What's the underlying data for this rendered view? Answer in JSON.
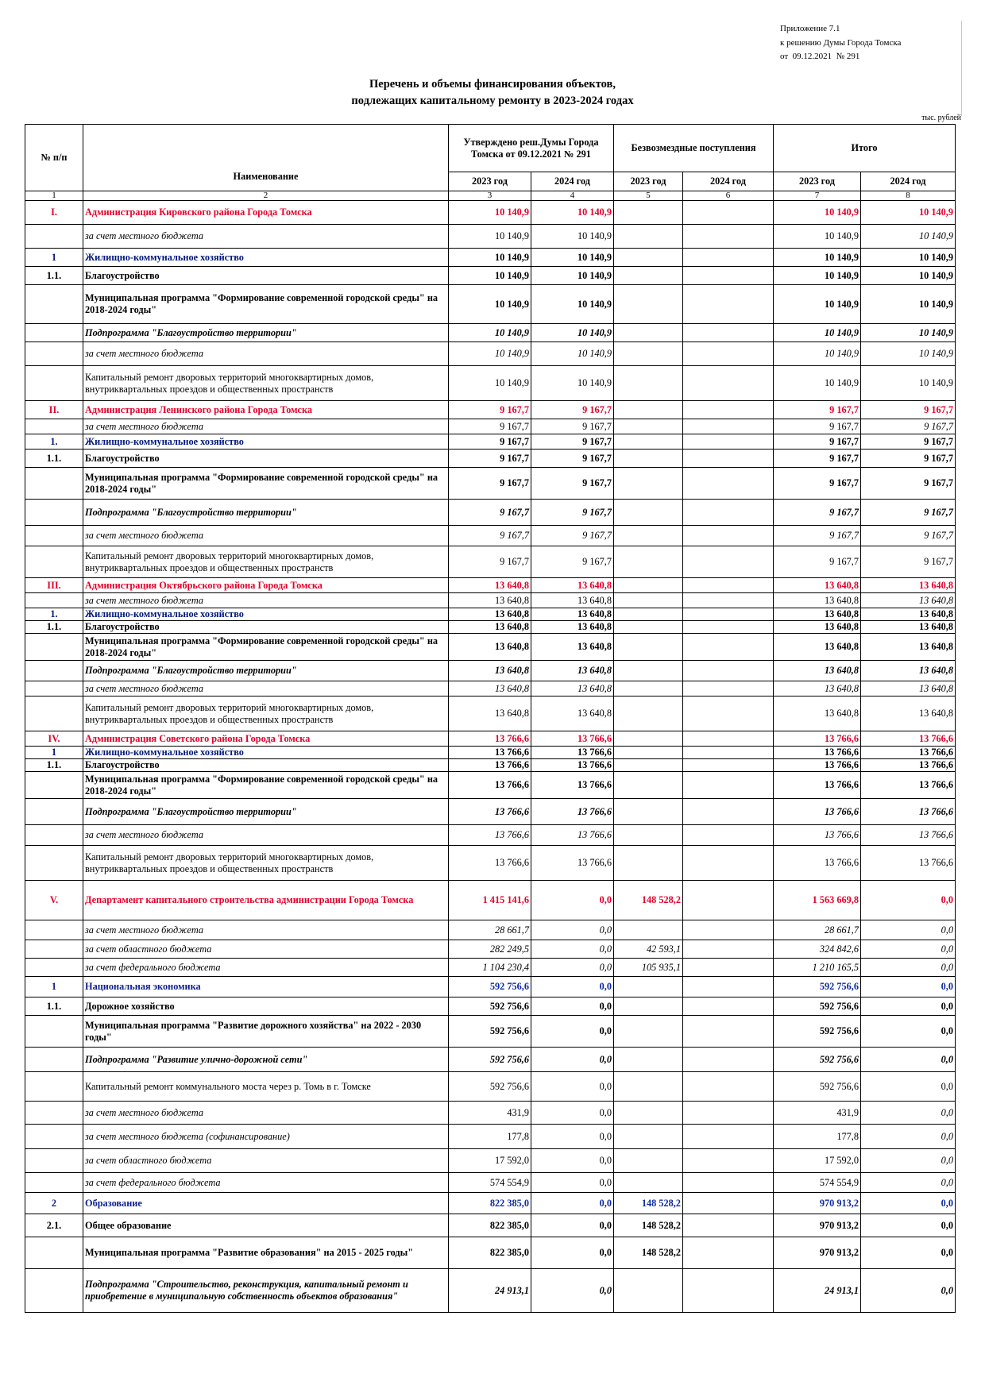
{
  "annex": {
    "line1": "Приложение 7.1",
    "line2": "к решению Думы Города Томска",
    "line3": "от  09.12.2021  № 291"
  },
  "title": {
    "line1": "Перечень и объемы финансирования объектов,",
    "line2": "подлежащих капитальному ремонту в 2023-2024 годах"
  },
  "units": "тыс. рублей",
  "header": {
    "no": "№ п/п",
    "name": "Наименование",
    "approved": "Утверждено реш.Думы Города Томска от 09.12.2021 № 291",
    "grants": "Безвозмездные поступления",
    "total": "Итого",
    "y2023": "2023 год",
    "y2024": "2024 год",
    "col_numbers": [
      "1",
      "2",
      "3",
      "4",
      "5",
      "6",
      "7",
      "8"
    ]
  },
  "rows": [
    {
      "no": "I.",
      "name": "Администрация Кировского района Города Томска",
      "v": [
        "10 140,9",
        "10 140,9",
        "",
        "",
        "10 140,9",
        "10 140,9"
      ],
      "style": "red"
    },
    {
      "no": "",
      "name": "за счет местного бюджета",
      "v": [
        "10 140,9",
        "10 140,9",
        "",
        "",
        "10 140,9",
        "10 140,9"
      ],
      "style": "it-mixed"
    },
    {
      "no": "1",
      "name": "Жилищно-коммунальное хозяйство",
      "v": [
        "10 140,9",
        "10 140,9",
        "",
        "",
        "10 140,9",
        "10 140,9"
      ],
      "style": "blue"
    },
    {
      "no": "1.1.",
      "name": "Благоустройство",
      "v": [
        "10 140,9",
        "10 140,9",
        "",
        "",
        "10 140,9",
        "10 140,9"
      ],
      "style": "bold"
    },
    {
      "no": "",
      "name": "Муниципальная программа \"Формирование современной городской среды\" на 2018-2024 годы\"",
      "v": [
        "10 140,9",
        "10 140,9",
        "",
        "",
        "10 140,9",
        "10 140,9"
      ],
      "style": "bold"
    },
    {
      "no": "",
      "name": "Подпрограмма \"Благоустройство территории\"",
      "v": [
        "10 140,9",
        "10 140,9",
        "",
        "",
        "10 140,9",
        "10 140,9"
      ],
      "style": "bold-it"
    },
    {
      "no": "",
      "name": "за счет местного бюджета",
      "v": [
        "10 140,9",
        "10 140,9",
        "",
        "",
        "10 140,9",
        "10 140,9"
      ],
      "style": "it"
    },
    {
      "no": "",
      "name": "Капитальный ремонт дворовых территорий многоквартирных домов, внутриквартальных проездов и общественных пространств",
      "v": [
        "10 140,9",
        "10 140,9",
        "",
        "",
        "10 140,9",
        "10 140,9"
      ],
      "style": "plain"
    },
    {
      "no": "II.",
      "name": "Администрация Ленинского района Города Томска",
      "v": [
        "9 167,7",
        "9 167,7",
        "",
        "",
        "9 167,7",
        "9 167,7"
      ],
      "style": "red"
    },
    {
      "no": "",
      "name": "за счет местного бюджета",
      "v": [
        "9 167,7",
        "9 167,7",
        "",
        "",
        "9 167,7",
        "9 167,7"
      ],
      "style": "it-mixed"
    },
    {
      "no": "1.",
      "name": "Жилищно-коммунальное хозяйство",
      "v": [
        "9 167,7",
        "9 167,7",
        "",
        "",
        "9 167,7",
        "9 167,7"
      ],
      "style": "blue"
    },
    {
      "no": "1.1.",
      "name": "Благоустройство",
      "v": [
        "9 167,7",
        "9 167,7",
        "",
        "",
        "9 167,7",
        "9 167,7"
      ],
      "style": "bold"
    },
    {
      "no": "",
      "name": "Муниципальная программа \"Формирование современной городской среды\" на 2018-2024 годы\"",
      "v": [
        "9 167,7",
        "9 167,7",
        "",
        "",
        "9 167,7",
        "9 167,7"
      ],
      "style": "bold"
    },
    {
      "no": "",
      "name": "Подпрограмма \"Благоустройство территории\"",
      "v": [
        "9 167,7",
        "9 167,7",
        "",
        "",
        "9 167,7",
        "9 167,7"
      ],
      "style": "bold-it"
    },
    {
      "no": "",
      "name": "за счет местного бюджета",
      "v": [
        "9 167,7",
        "9 167,7",
        "",
        "",
        "9 167,7",
        "9 167,7"
      ],
      "style": "it"
    },
    {
      "no": "",
      "name": "Капитальный ремонт дворовых территорий многоквартирных домов, внутриквартальных проездов и общественных пространств",
      "v": [
        "9 167,7",
        "9 167,7",
        "",
        "",
        "9 167,7",
        "9 167,7"
      ],
      "style": "plain"
    },
    {
      "no": "III.",
      "name": "Администрация Октябрьского района Города Томска",
      "v": [
        "13 640,8",
        "13 640,8",
        "",
        "",
        "13 640,8",
        "13 640,8"
      ],
      "style": "red"
    },
    {
      "no": "",
      "name": "за счет местного бюджета",
      "v": [
        "13 640,8",
        "13 640,8",
        "",
        "",
        "13 640,8",
        "13 640,8"
      ],
      "style": "it-mixed"
    },
    {
      "no": "1.",
      "name": "Жилищно-коммунальное хозяйство",
      "v": [
        "13 640,8",
        "13 640,8",
        "",
        "",
        "13 640,8",
        "13 640,8"
      ],
      "style": "blue"
    },
    {
      "no": "1.1.",
      "name": "Благоустройство",
      "v": [
        "13 640,8",
        "13 640,8",
        "",
        "",
        "13 640,8",
        "13 640,8"
      ],
      "style": "bold"
    },
    {
      "no": "",
      "name": "Муниципальная программа \"Формирование современной городской среды\" на 2018-2024 годы\"",
      "v": [
        "13 640,8",
        "13 640,8",
        "",
        "",
        "13 640,8",
        "13 640,8"
      ],
      "style": "bold"
    },
    {
      "no": "",
      "name": "Подпрограмма \"Благоустройство территории\"",
      "v": [
        "13 640,8",
        "13 640,8",
        "",
        "",
        "13 640,8",
        "13 640,8"
      ],
      "style": "bold-it"
    },
    {
      "no": "",
      "name": "за счет местного бюджета",
      "v": [
        "13 640,8",
        "13 640,8",
        "",
        "",
        "13 640,8",
        "13 640,8"
      ],
      "style": "it"
    },
    {
      "no": "",
      "name": "Капитальный ремонт дворовых территорий многоквартирных домов, внутриквартальных проездов и общественных пространств",
      "v": [
        "13 640,8",
        "13 640,8",
        "",
        "",
        "13 640,8",
        "13 640,8"
      ],
      "style": "plain"
    },
    {
      "no": "IV.",
      "name": "Администрация Советского района Города Томска",
      "v": [
        "13 766,6",
        "13 766,6",
        "",
        "",
        "13 766,6",
        "13 766,6"
      ],
      "style": "red"
    },
    {
      "no": "1",
      "name": "Жилищно-коммунальное хозяйство",
      "v": [
        "13 766,6",
        "13 766,6",
        "",
        "",
        "13 766,6",
        "13 766,6"
      ],
      "style": "blue"
    },
    {
      "no": "1.1.",
      "name": "Благоустройство",
      "v": [
        "13 766,6",
        "13 766,6",
        "",
        "",
        "13 766,6",
        "13 766,6"
      ],
      "style": "bold"
    },
    {
      "no": "",
      "name": "Муниципальная программа \"Формирование современной городской среды\" на 2018-2024 годы\"",
      "v": [
        "13 766,6",
        "13 766,6",
        "",
        "",
        "13 766,6",
        "13 766,6"
      ],
      "style": "bold"
    },
    {
      "no": "",
      "name": "Подпрограмма \"Благоустройство территории\"",
      "v": [
        "13 766,6",
        "13 766,6",
        "",
        "",
        "13 766,6",
        "13 766,6"
      ],
      "style": "bold-it"
    },
    {
      "no": "",
      "name": "за счет местного бюджета",
      "v": [
        "13 766,6",
        "13 766,6",
        "",
        "",
        "13 766,6",
        "13 766,6"
      ],
      "style": "it"
    },
    {
      "no": "",
      "name": "Капитальный ремонт дворовых территорий многоквартирных домов, внутриквартальных проездов и общественных пространств",
      "v": [
        "13 766,6",
        "13 766,6",
        "",
        "",
        "13 766,6",
        "13 766,6"
      ],
      "style": "plain"
    },
    {
      "no": "V.",
      "name": "Департамент капитального строительства администрации Города Томска",
      "v": [
        "1 415 141,6",
        "0,0",
        "148 528,2",
        "",
        "1 563 669,8",
        "0,0"
      ],
      "style": "red"
    },
    {
      "no": "",
      "name": "за счет местного бюджета",
      "v": [
        "28 661,7",
        "0,0",
        "",
        "",
        "28 661,7",
        "0,0"
      ],
      "style": "it"
    },
    {
      "no": "",
      "name": "за счет областного бюджета",
      "v": [
        "282 249,5",
        "0,0",
        "42 593,1",
        "",
        "324 842,6",
        "0,0"
      ],
      "style": "it"
    },
    {
      "no": "",
      "name": "за счет федерального бюджета",
      "v": [
        "1 104 230,4",
        "0,0",
        "105 935,1",
        "",
        "1 210 165,5",
        "0,0"
      ],
      "style": "it"
    },
    {
      "no": "1",
      "name": "Национальная экономика",
      "v": [
        "592 756,6",
        "0,0",
        "",
        "",
        "592 756,6",
        "0,0"
      ],
      "style": "blue2"
    },
    {
      "no": "1.1.",
      "name": "Дорожное хозяйство",
      "v": [
        "592 756,6",
        "0,0",
        "",
        "",
        "592 756,6",
        "0,0"
      ],
      "style": "bold"
    },
    {
      "no": "",
      "name": "Муниципальная программа \"Развитие дорожного хозяйства\" на 2022 - 2030 годы\"",
      "v": [
        "592 756,6",
        "0,0",
        "",
        "",
        "592 756,6",
        "0,0"
      ],
      "style": "bold"
    },
    {
      "no": "",
      "name": "Подпрограмма \"Развитие улично-дорожной сети\"",
      "v": [
        "592 756,6",
        "0,0",
        "",
        "",
        "592 756,6",
        "0,0"
      ],
      "style": "bold-it"
    },
    {
      "no": "",
      "name": "Капитальный ремонт коммунального моста через р. Томь в г. Томске",
      "v": [
        "592 756,6",
        "0,0",
        "",
        "",
        "592 756,6",
        "0,0"
      ],
      "style": "plain"
    },
    {
      "no": "",
      "name": "за счет местного бюджета",
      "v": [
        "431,9",
        "0,0",
        "",
        "",
        "431,9",
        "0,0"
      ],
      "style": "it-mixed"
    },
    {
      "no": "",
      "name": "за счет местного бюджета (софинансирование)",
      "v": [
        "177,8",
        "0,0",
        "",
        "",
        "177,8",
        "0,0"
      ],
      "style": "it-mixed"
    },
    {
      "no": "",
      "name": "за счет областного бюджета",
      "v": [
        "17 592,0",
        "0,0",
        "",
        "",
        "17 592,0",
        "0,0"
      ],
      "style": "it-mixed"
    },
    {
      "no": "",
      "name": "за счет федерального бюджета",
      "v": [
        "574 554,9",
        "0,0",
        "",
        "",
        "574 554,9",
        "0,0"
      ],
      "style": "it-mixed"
    },
    {
      "no": "2",
      "name": "Образование",
      "v": [
        "822 385,0",
        "0,0",
        "148 528,2",
        "",
        "970 913,2",
        "0,0"
      ],
      "style": "blue2"
    },
    {
      "no": "2.1.",
      "name": "Общее образование",
      "v": [
        "822 385,0",
        "0,0",
        "148 528,2",
        "",
        "970 913,2",
        "0,0"
      ],
      "style": "bold"
    },
    {
      "no": "",
      "name": "Муниципальная программа \"Развитие образования\" на 2015 - 2025 годы\"",
      "v": [
        "822 385,0",
        "0,0",
        "148 528,2",
        "",
        "970 913,2",
        "0,0"
      ],
      "style": "bold"
    },
    {
      "no": "",
      "name": "Подпрограмма \"Строительство, реконструкция, капитальный ремонт и приобретение в муниципальную собственность объектов образования\"",
      "v": [
        "24 913,1",
        "0,0",
        "",
        "",
        "24 913,1",
        "0,0"
      ],
      "style": "bold-it"
    }
  ]
}
